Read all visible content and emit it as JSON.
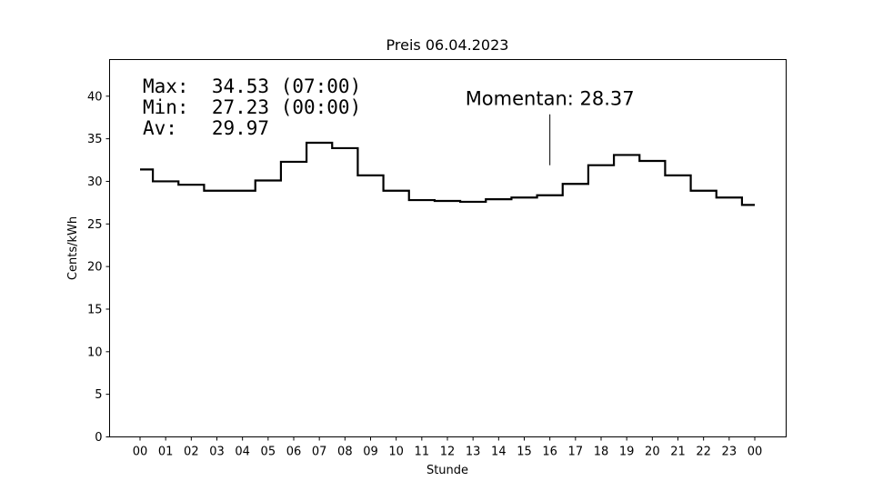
{
  "chart_data": {
    "type": "line",
    "step": "post",
    "title": "Preis 06.04.2023",
    "xlabel": "Stunde",
    "ylabel": "Cents/kWh",
    "ylim": [
      0,
      44.3
    ],
    "yticks": [
      0,
      5,
      10,
      15,
      20,
      25,
      30,
      35,
      40
    ],
    "xtick_labels": [
      "00",
      "01",
      "02",
      "03",
      "04",
      "05",
      "06",
      "07",
      "08",
      "09",
      "10",
      "11",
      "12",
      "13",
      "14",
      "15",
      "16",
      "17",
      "18",
      "19",
      "20",
      "21",
      "22",
      "23",
      "00"
    ],
    "series": [
      {
        "color": "#000000",
        "values": [
          31.4,
          30.0,
          29.6,
          28.9,
          28.9,
          30.1,
          32.3,
          34.53,
          33.9,
          30.7,
          28.9,
          27.8,
          27.7,
          27.6,
          27.9,
          28.1,
          28.37,
          29.7,
          31.9,
          33.1,
          32.4,
          30.7,
          28.9,
          28.1,
          27.23
        ]
      }
    ],
    "stats": {
      "max_line": "Max:  34.53 (07:00)",
      "min_line": "Min:  27.23 (00:00)",
      "av_line": "Av:   29.97"
    },
    "annotation": {
      "text": "Momentan: 28.37",
      "hour": 16,
      "value": 28.37
    },
    "grid": false,
    "frame_color": "#000000"
  }
}
